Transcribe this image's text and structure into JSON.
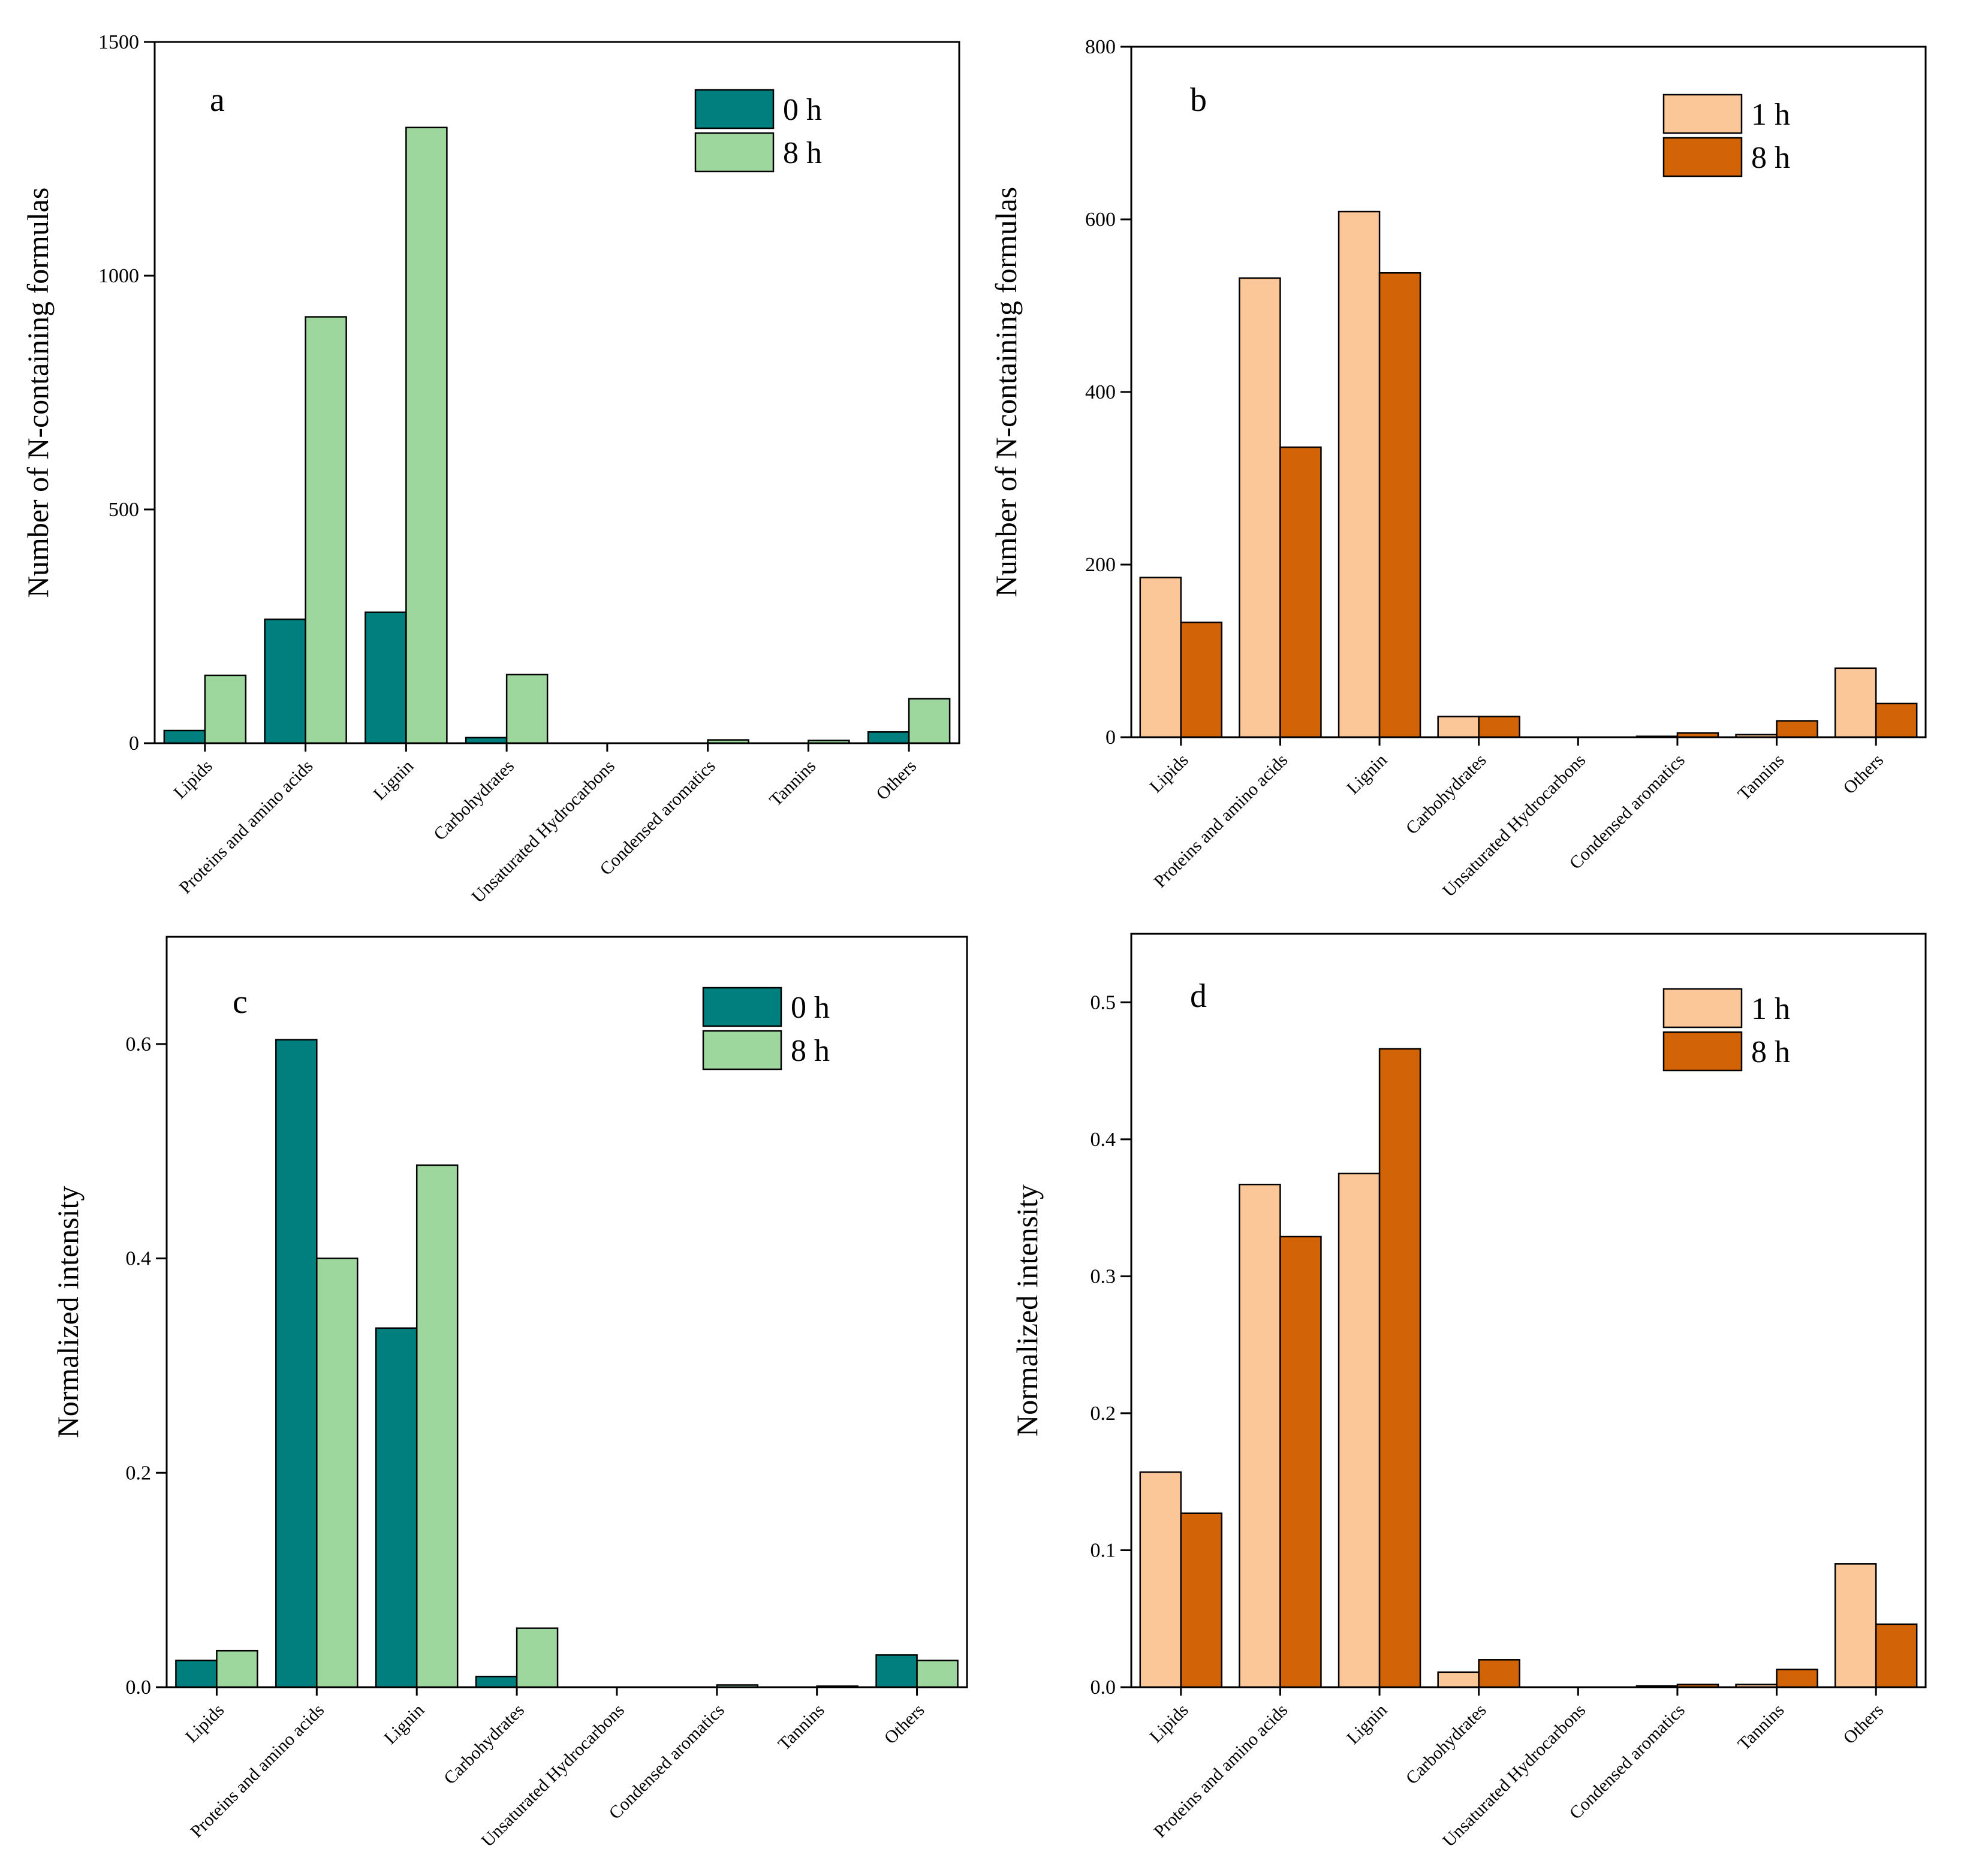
{
  "figure": {
    "colors": {
      "teal": "#007f7f",
      "light_green": "#9dd79d",
      "peach": "#fbc698",
      "burnt_orange": "#d26306",
      "axis": "#000000"
    }
  },
  "chart_data": [
    {
      "panel": "a",
      "type": "bar",
      "title": "",
      "panel_label": "a",
      "xlabel": "",
      "ylabel": "Number of N-containing formulas",
      "ylim": [
        0,
        1500
      ],
      "yticks": [
        0,
        500,
        1000,
        1500
      ],
      "ytick_labels": [
        "0",
        "500",
        "1000",
        "1500"
      ],
      "categories": [
        "Lipids",
        "Proteins and amino acids",
        "Lignin",
        "Carbohydrates",
        "Unsaturated Hydrocarbons",
        "Condensed aromatics",
        "Tannins",
        "Others"
      ],
      "series": [
        {
          "name": "0 h",
          "color": "#007f7f",
          "values": [
            27,
            265,
            280,
            12,
            0,
            0,
            0,
            24
          ]
        },
        {
          "name": "8 h",
          "color": "#9dd79d",
          "values": [
            145,
            912,
            1317,
            147,
            0,
            7,
            6,
            95
          ]
        }
      ],
      "legend_position": "top-right"
    },
    {
      "panel": "b",
      "type": "bar",
      "title": "",
      "panel_label": "b",
      "xlabel": "",
      "ylabel": "Number of N-containing formulas",
      "ylim": [
        0,
        800
      ],
      "yticks": [
        0,
        200,
        400,
        600,
        800
      ],
      "ytick_labels": [
        "0",
        "200",
        "400",
        "600",
        "800"
      ],
      "categories": [
        "Lipids",
        "Proteins and amino acids",
        "Lignin",
        "Carbohydrates",
        "Unsaturated Hydrocarbons",
        "Condensed aromatics",
        "Tannins",
        "Others"
      ],
      "series": [
        {
          "name": "1 h",
          "color": "#fbc698",
          "values": [
            185,
            532,
            609,
            24,
            0,
            1,
            3,
            80
          ]
        },
        {
          "name": "8 h",
          "color": "#d26306",
          "values": [
            133,
            336,
            538,
            24,
            0,
            5,
            19,
            39
          ]
        }
      ],
      "legend_position": "top-right"
    },
    {
      "panel": "c",
      "type": "bar",
      "title": "",
      "panel_label": "c",
      "xlabel": "",
      "ylabel": "Normalized intensity",
      "ylim": [
        0,
        0.7
      ],
      "yticks": [
        0,
        0.2,
        0.4,
        0.6
      ],
      "ytick_labels": [
        "0.0",
        "0.2",
        "0.4",
        "0.6"
      ],
      "categories": [
        "Lipids",
        "Proteins and amino acids",
        "Lignin",
        "Carbohydrates",
        "Unsaturated Hydrocarbons",
        "Condensed aromatics",
        "Tannins",
        "Others"
      ],
      "series": [
        {
          "name": "0 h",
          "color": "#007f7f",
          "values": [
            0.025,
            0.604,
            0.335,
            0.01,
            0,
            0,
            0,
            0.03
          ]
        },
        {
          "name": "8 h",
          "color": "#9dd79d",
          "values": [
            0.034,
            0.4,
            0.487,
            0.055,
            0,
            0.002,
            0.001,
            0.025
          ]
        }
      ],
      "legend_position": "top-right"
    },
    {
      "panel": "d",
      "type": "bar",
      "title": "",
      "panel_label": "d",
      "xlabel": "",
      "ylabel": "Normalized intensity",
      "ylim": [
        0,
        0.55
      ],
      "yticks": [
        0,
        0.1,
        0.2,
        0.3,
        0.4,
        0.5
      ],
      "ytick_labels": [
        "0.0",
        "0.1",
        "0.2",
        "0.3",
        "0.4",
        "0.5"
      ],
      "categories": [
        "Lipids",
        "Proteins and amino acids",
        "Lignin",
        "Carbohydrates",
        "Unsaturated Hydrocarbons",
        "Condensed aromatics",
        "Tannins",
        "Others"
      ],
      "series": [
        {
          "name": "1 h",
          "color": "#fbc698",
          "values": [
            0.157,
            0.367,
            0.375,
            0.011,
            0,
            0.001,
            0.002,
            0.09
          ]
        },
        {
          "name": "8 h",
          "color": "#d26306",
          "values": [
            0.127,
            0.329,
            0.466,
            0.02,
            0,
            0.002,
            0.013,
            0.046
          ]
        }
      ],
      "legend_position": "top-right"
    }
  ]
}
